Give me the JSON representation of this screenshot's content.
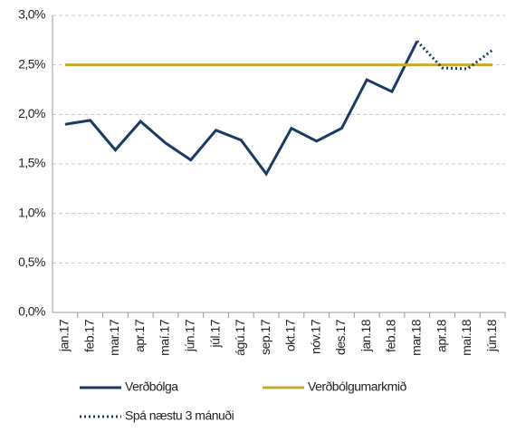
{
  "chart_data": {
    "type": "line",
    "categories": [
      "jan.17",
      "feb.17",
      "mar.17",
      "apr.17",
      "maí.17",
      "jún.17",
      "júl.17",
      "ágú.17",
      "sep.17",
      "okt.17",
      "nóv.17",
      "des.17",
      "jan.18",
      "feb.18",
      "mar.18",
      "apr.18",
      "maí.18",
      "jún.18"
    ],
    "series": [
      {
        "name": "Verðbólga",
        "color": "#1b3a63",
        "style": "solid",
        "values": [
          1.9,
          1.94,
          1.64,
          1.93,
          1.71,
          1.54,
          1.84,
          1.74,
          1.4,
          1.86,
          1.73,
          1.86,
          2.35,
          2.23,
          2.74,
          null,
          null,
          null
        ]
      },
      {
        "name": "Verðbólgumarkmið",
        "color": "#c9a92c",
        "style": "solid",
        "values": [
          2.5,
          2.5,
          2.5,
          2.5,
          2.5,
          2.5,
          2.5,
          2.5,
          2.5,
          2.5,
          2.5,
          2.5,
          2.5,
          2.5,
          2.5,
          2.5,
          2.5,
          2.5
        ]
      },
      {
        "name": "Spá næstu 3 mánuði",
        "color": "#1b3a63",
        "style": "dotted",
        "values": [
          null,
          null,
          null,
          null,
          null,
          null,
          null,
          null,
          null,
          null,
          null,
          null,
          null,
          null,
          2.74,
          2.47,
          2.46,
          2.65
        ]
      }
    ],
    "ylim": [
      0,
      3
    ],
    "yticks": [
      {
        "value": 0,
        "label": "0,0%"
      },
      {
        "value": 0.5,
        "label": "0,5%"
      },
      {
        "value": 1,
        "label": "1,0%"
      },
      {
        "value": 1.5,
        "label": "1,5%"
      },
      {
        "value": 2,
        "label": "2,0%"
      },
      {
        "value": 2.5,
        "label": "2,5%"
      },
      {
        "value": 3,
        "label": "3,0%"
      }
    ],
    "grid": true
  }
}
